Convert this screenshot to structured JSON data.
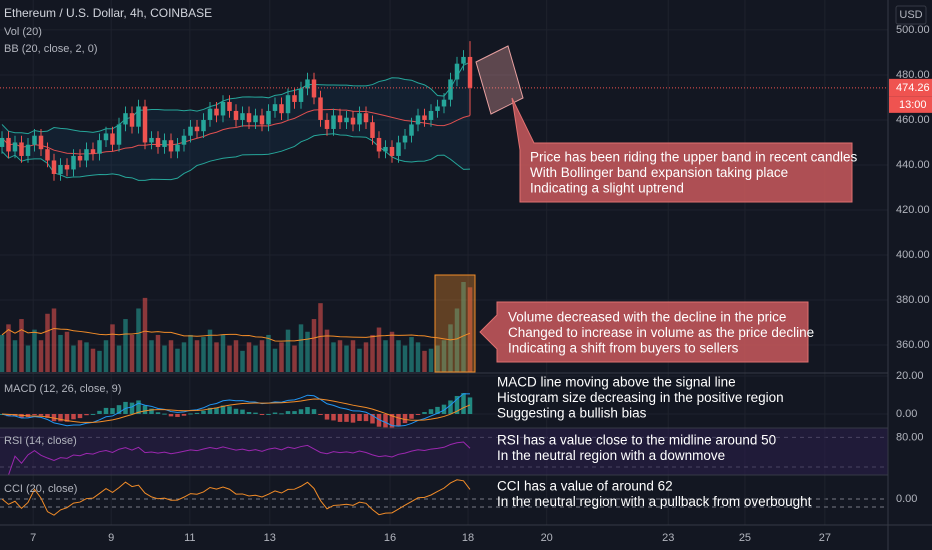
{
  "chart_data": {
    "type": "candlestick",
    "title": "Ethereum / U.S. Dollar, 4h, COINBASE",
    "currency": "USD",
    "indicator_labels": [
      "Vol (20)",
      "BB (20, close, 2, 0)",
      "MACD (12, 26, close, 9)",
      "RSI (14, close)",
      "CCI (20, close)"
    ],
    "up_color": "#26a69a",
    "down_color": "#ef5350",
    "open": [
      448,
      452,
      446,
      450,
      444,
      449,
      453,
      447,
      442,
      436,
      440,
      438,
      444,
      442,
      447,
      445,
      451,
      454,
      449,
      458,
      463,
      457,
      466,
      450,
      452,
      448,
      451,
      446,
      449,
      453,
      457,
      455,
      460,
      465,
      462,
      468,
      464,
      460,
      463,
      459,
      462,
      458,
      464,
      467,
      463,
      471,
      468,
      474,
      478,
      470,
      460,
      456,
      462,
      459,
      461,
      458,
      463,
      459,
      452,
      446,
      448,
      444,
      450,
      453,
      458,
      462,
      460,
      464,
      466,
      469,
      478,
      485,
      488
    ],
    "high": [
      455,
      455,
      453,
      453,
      452,
      456,
      456,
      450,
      445,
      443,
      443,
      447,
      447,
      450,
      450,
      454,
      457,
      457,
      461,
      466,
      466,
      469,
      469,
      455,
      455,
      454,
      454,
      452,
      456,
      460,
      460,
      463,
      468,
      468,
      471,
      471,
      467,
      466,
      466,
      465,
      465,
      467,
      470,
      470,
      474,
      474,
      477,
      481,
      481,
      473,
      463,
      465,
      465,
      464,
      464,
      466,
      466,
      462,
      455,
      451,
      451,
      453,
      456,
      461,
      465,
      465,
      467,
      469,
      472,
      481,
      488,
      491,
      495
    ],
    "low": [
      445,
      443,
      443,
      441,
      441,
      446,
      444,
      439,
      433,
      433,
      435,
      435,
      439,
      439,
      442,
      442,
      448,
      446,
      446,
      455,
      454,
      454,
      447,
      447,
      445,
      445,
      443,
      443,
      446,
      450,
      452,
      452,
      457,
      459,
      459,
      461,
      457,
      457,
      456,
      456,
      455,
      455,
      461,
      460,
      460,
      465,
      465,
      471,
      467,
      457,
      453,
      453,
      456,
      456,
      455,
      455,
      456,
      449,
      443,
      443,
      441,
      441,
      447,
      450,
      455,
      457,
      457,
      461,
      463,
      466,
      475,
      482,
      462
    ],
    "close": [
      452,
      446,
      450,
      444,
      449,
      453,
      447,
      442,
      436,
      440,
      438,
      444,
      442,
      447,
      445,
      451,
      454,
      449,
      458,
      463,
      457,
      466,
      450,
      452,
      448,
      451,
      446,
      449,
      453,
      457,
      455,
      460,
      465,
      462,
      468,
      464,
      460,
      463,
      459,
      462,
      458,
      464,
      467,
      463,
      471,
      468,
      474,
      478,
      470,
      460,
      456,
      462,
      459,
      461,
      458,
      463,
      459,
      452,
      446,
      448,
      444,
      450,
      453,
      458,
      462,
      460,
      464,
      466,
      469,
      478,
      485,
      488,
      474.26
    ],
    "volume": [
      35,
      45,
      30,
      50,
      25,
      40,
      30,
      55,
      60,
      35,
      38,
      25,
      30,
      28,
      22,
      20,
      30,
      45,
      25,
      50,
      35,
      60,
      70,
      30,
      35,
      25,
      30,
      22,
      28,
      35,
      30,
      33,
      40,
      28,
      35,
      25,
      30,
      20,
      28,
      25,
      30,
      35,
      22,
      28,
      40,
      25,
      45,
      38,
      50,
      65,
      40,
      28,
      30,
      25,
      30,
      22,
      28,
      35,
      42,
      30,
      38,
      30,
      25,
      33,
      28,
      20,
      22,
      25,
      30,
      45,
      60,
      85,
      80
    ],
    "ylim": [
      348,
      513.3
    ],
    "yticks": [
      {
        "value": 500,
        "label": "500.00"
      },
      {
        "value": 480,
        "label": "480.00"
      },
      {
        "value": 460,
        "label": "460.00"
      },
      {
        "value": 440,
        "label": "440.00"
      },
      {
        "value": 420,
        "label": "420.00"
      },
      {
        "value": 400,
        "label": "400.00"
      },
      {
        "value": 380,
        "label": "380.00"
      },
      {
        "value": 360,
        "label": "360.00"
      }
    ],
    "last_price": 474.26,
    "last_time": "13:00",
    "macd_ticks": [
      {
        "value": 20,
        "label": "20.00"
      },
      {
        "value": 0,
        "label": "0.00"
      }
    ],
    "rsi_ticks": [
      {
        "value": 80,
        "label": "80.00"
      }
    ],
    "cci_ticks": [
      {
        "value": 0,
        "label": "0.00"
      }
    ],
    "xticks": [
      {
        "value": 4.8,
        "label": "7"
      },
      {
        "value": 16.8,
        "label": "9"
      },
      {
        "value": 28.9,
        "label": "11"
      },
      {
        "value": 41.2,
        "label": "13"
      },
      {
        "value": 59.7,
        "label": "16"
      },
      {
        "value": 71.7,
        "label": "18"
      },
      {
        "value": 83.8,
        "label": "20"
      },
      {
        "value": 102.5,
        "label": "23"
      },
      {
        "value": 114.3,
        "label": "25"
      },
      {
        "value": 126.6,
        "label": "27"
      }
    ],
    "annotations": [
      [
        "Price has been riding the upper band in recent candles",
        "With Bollinger band expansion taking place",
        "Indicating a slight uptrend"
      ],
      [
        "Volume decreased with the decline in the price",
        "Changed to increase in volume as the price decline",
        "Indicating a shift from buyers to sellers"
      ],
      [
        "MACD line moving above the signal line",
        "Histogram size decreasing in the positive region",
        "Suggesting a bullish bias"
      ],
      [
        "RSI has a value close to the midline around 50",
        "In the neutral region with a downmove"
      ],
      [
        "CCI has a value of around 62",
        "In the neutral region with a pullback from overbought"
      ]
    ]
  }
}
